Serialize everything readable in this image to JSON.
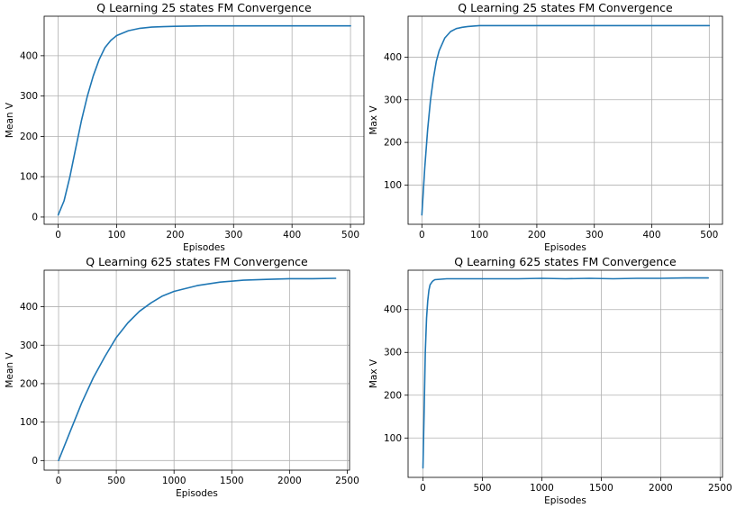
{
  "colors": {
    "series": "#1f77b4",
    "grid": "#b0b0b0"
  },
  "chart_data": [
    {
      "type": "line",
      "title": "Q Learning 25 states FM Convergence",
      "xlabel": "Episodes",
      "ylabel": "Mean V",
      "xlim": [
        -24,
        523
      ],
      "ylim": [
        -18,
        498
      ],
      "xticks": [
        0,
        100,
        200,
        300,
        400,
        500
      ],
      "yticks": [
        0,
        100,
        200,
        300,
        400
      ],
      "grid": true,
      "series": [
        {
          "x": [
            0,
            10,
            20,
            30,
            40,
            50,
            60,
            70,
            80,
            90,
            100,
            120,
            140,
            160,
            180,
            200,
            250,
            300,
            350,
            400,
            450,
            500
          ],
          "y": [
            5,
            40,
            100,
            170,
            240,
            300,
            350,
            390,
            420,
            438,
            450,
            462,
            468,
            471,
            472,
            473,
            474,
            474,
            474,
            474,
            474,
            474
          ]
        }
      ]
    },
    {
      "type": "line",
      "title": "Q Learning 25 states FM Convergence",
      "xlabel": "Episodes",
      "ylabel": "Max V",
      "xlim": [
        -24,
        523
      ],
      "ylim": [
        8,
        496
      ],
      "xticks": [
        0,
        100,
        200,
        300,
        400,
        500
      ],
      "yticks": [
        100,
        200,
        300,
        400
      ],
      "grid": true,
      "series": [
        {
          "x": [
            0,
            5,
            10,
            15,
            20,
            25,
            30,
            40,
            50,
            60,
            70,
            80,
            100,
            120,
            150,
            200,
            300,
            400,
            500
          ],
          "y": [
            30,
            140,
            230,
            300,
            350,
            390,
            415,
            445,
            460,
            467,
            470,
            472,
            474,
            474,
            474,
            474,
            474,
            474,
            474
          ]
        }
      ]
    },
    {
      "type": "line",
      "title": "Q Learning 625 states FM Convergence",
      "xlabel": "Episodes",
      "ylabel": "Mean V",
      "xlim": [
        -125,
        2520
      ],
      "ylim": [
        -25,
        495
      ],
      "xticks": [
        0,
        500,
        1000,
        1500,
        2000,
        2500
      ],
      "yticks": [
        0,
        100,
        200,
        300,
        400
      ],
      "grid": true,
      "series": [
        {
          "x": [
            0,
            100,
            200,
            300,
            400,
            500,
            600,
            700,
            800,
            900,
            1000,
            1200,
            1400,
            1600,
            1800,
            2000,
            2200,
            2400
          ],
          "y": [
            0,
            75,
            150,
            215,
            270,
            320,
            358,
            388,
            410,
            428,
            440,
            455,
            464,
            469,
            471,
            473,
            473,
            474
          ]
        }
      ]
    },
    {
      "type": "line",
      "title": "Q Learning 625 states FM Convergence",
      "xlabel": "Episodes",
      "ylabel": "Max V",
      "xlim": [
        -125,
        2520
      ],
      "ylim": [
        8,
        492
      ],
      "xticks": [
        0,
        500,
        1000,
        1500,
        2000,
        2500
      ],
      "yticks": [
        100,
        200,
        300,
        400
      ],
      "grid": true,
      "series": [
        {
          "x": [
            0,
            10,
            20,
            30,
            40,
            50,
            60,
            80,
            100,
            150,
            200,
            400,
            600,
            800,
            1000,
            1200,
            1400,
            1600,
            1800,
            2000,
            2200,
            2400
          ],
          "y": [
            30,
            160,
            300,
            380,
            420,
            445,
            458,
            466,
            470,
            471,
            472,
            472,
            472,
            472,
            473,
            472,
            473,
            472,
            473,
            473,
            474,
            474
          ]
        }
      ]
    }
  ]
}
